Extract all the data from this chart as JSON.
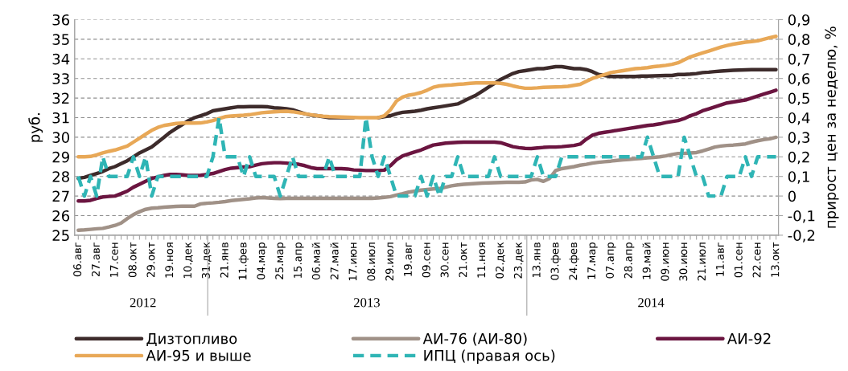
{
  "chart_data": {
    "type": "line",
    "categories": [
      "06.авг",
      null,
      null,
      "27.авг",
      null,
      null,
      "17.сен",
      null,
      null,
      "08.окт",
      null,
      null,
      "29.окт",
      null,
      null,
      "19.ноя",
      null,
      null,
      "10.дек",
      null,
      null,
      "31.дек",
      null,
      null,
      "21.янв",
      null,
      null,
      "11.фев",
      null,
      null,
      "04.мар",
      null,
      null,
      "25.мар",
      null,
      null,
      "15.апр",
      null,
      null,
      "06.май",
      null,
      null,
      "27.май",
      null,
      null,
      "17.июн",
      null,
      null,
      "08.июл",
      null,
      null,
      "29.июл",
      null,
      null,
      "19.авг",
      null,
      null,
      "09.сен",
      null,
      null,
      "30.сен",
      null,
      null,
      "21.окт",
      null,
      null,
      "11.ноя",
      null,
      null,
      "02.дек",
      null,
      null,
      "23.дек",
      null,
      null,
      "13.янв",
      null,
      null,
      "03.фев",
      null,
      null,
      "24.фев",
      null,
      null,
      "17.мар",
      null,
      null,
      "07.апр",
      null,
      null,
      "28.апр",
      null,
      null,
      "19.май",
      null,
      null,
      "09.июн",
      null,
      null,
      "30.июн",
      null,
      null,
      "21.июл",
      null,
      null,
      "11.авг",
      null,
      null,
      "01.сен",
      null,
      null,
      "22.сен",
      null,
      null,
      "13.окт"
    ],
    "x2lim": [
      "2012-08-06",
      "2014-10-13"
    ],
    "x2ticks": [
      {
        "value": "2013-01-01",
        "label": null
      },
      {
        "value": "2014-01-01",
        "label": null
      },
      {
        "value": "2012-10-19",
        "label": "2012"
      },
      {
        "value": "2013-07-02",
        "label": "2013"
      },
      {
        "value": "2014-05-23",
        "label": "2014"
      }
    ],
    "ylabel": "руб.",
    "y2label": "прирост цен за неделю, %",
    "ylim": [
      25,
      36
    ],
    "yticks": [
      25,
      26,
      27,
      28,
      29,
      30,
      31,
      32,
      33,
      34,
      35,
      36
    ],
    "y2lim": [
      -0.2,
      0.9
    ],
    "y2ticks": [
      {
        "value": -0.2,
        "label": "-0,2"
      },
      {
        "value": -0.1,
        "label": "-0,1"
      },
      0,
      {
        "value": 0.1,
        "label": "0,1"
      },
      {
        "value": 0.2,
        "label": "0,2"
      },
      {
        "value": 0.3,
        "label": "0,3"
      },
      {
        "value": 0.4,
        "label": "0,4"
      },
      {
        "value": 0.5,
        "label": "0,5"
      },
      {
        "value": 0.6,
        "label": "0,6"
      },
      {
        "value": 0.7,
        "label": "0,7"
      },
      {
        "value": 0.8,
        "label": "0,8"
      },
      {
        "value": 0.9,
        "label": "0,9"
      }
    ],
    "grid": "y",
    "legend": "bottom",
    "series": [
      {
        "name": "Дизтопливо",
        "color": "#3d2b2b",
        "values": [
          27.9,
          27.95,
          28.05,
          28.15,
          28.25,
          28.4,
          28.5,
          28.65,
          28.8,
          29.0,
          29.2,
          29.35,
          29.5,
          29.75,
          30.0,
          30.25,
          30.45,
          30.65,
          30.85,
          31.0,
          31.1,
          31.2,
          31.35,
          31.4,
          31.45,
          31.5,
          31.55,
          31.55,
          31.56,
          31.56,
          31.56,
          31.55,
          31.5,
          31.48,
          31.45,
          31.4,
          31.3,
          31.2,
          31.13,
          31.1,
          31.05,
          31.0,
          31.0,
          31.0,
          31.0,
          31.0,
          null,
          null,
          null,
          31.0,
          31.05,
          31.1,
          31.2,
          31.27,
          31.3,
          31.33,
          31.38,
          31.45,
          31.5,
          31.55,
          31.6,
          31.65,
          31.7,
          31.85,
          32.0,
          32.15,
          32.35,
          32.55,
          32.75,
          32.95,
          33.1,
          33.25,
          33.35,
          33.4,
          33.45,
          33.5,
          33.5,
          33.55,
          33.6,
          33.6,
          33.55,
          33.5,
          33.5,
          33.45,
          33.35,
          33.2,
          33.15,
          33.1,
          33.1,
          33.1,
          33.1,
          33.1,
          33.12,
          33.12,
          33.13,
          33.14,
          33.15,
          33.15,
          33.2,
          33.2,
          33.22,
          33.25,
          33.3,
          33.32,
          33.35,
          33.38,
          33.4,
          33.42,
          33.43,
          33.44,
          33.45,
          33.45,
          33.45,
          33.45,
          33.45
        ]
      },
      {
        "name": "АИ-76 (АИ-80)",
        "color": "#a09187",
        "values": [
          25.25,
          25.27,
          25.3,
          25.33,
          25.35,
          25.42,
          25.5,
          25.62,
          25.85,
          26.05,
          26.2,
          26.32,
          26.38,
          26.4,
          26.43,
          26.45,
          26.47,
          26.48,
          26.48,
          26.48,
          26.6,
          26.63,
          26.65,
          26.68,
          26.72,
          26.77,
          26.8,
          26.83,
          26.86,
          26.9,
          26.92,
          26.9,
          26.88,
          26.87,
          26.88,
          26.88,
          26.88,
          26.88,
          26.88,
          26.88,
          26.88,
          26.88,
          26.88,
          26.88,
          26.88,
          26.88,
          26.88,
          26.88,
          26.88,
          26.9,
          26.93,
          26.97,
          27.05,
          27.12,
          27.2,
          27.25,
          27.3,
          27.33,
          27.36,
          27.38,
          27.45,
          27.52,
          27.57,
          27.6,
          27.62,
          27.64,
          27.66,
          27.67,
          27.68,
          27.69,
          27.7,
          27.7,
          27.7,
          27.72,
          27.82,
          27.85,
          27.75,
          27.9,
          28.3,
          28.4,
          28.45,
          28.5,
          28.57,
          28.62,
          28.68,
          28.72,
          28.75,
          28.78,
          28.82,
          28.85,
          28.87,
          28.9,
          28.92,
          28.95,
          28.97,
          29.0,
          29.05,
          29.12,
          29.17,
          29.18,
          29.2,
          29.22,
          29.3,
          29.4,
          29.5,
          29.55,
          29.58,
          29.6,
          29.63,
          29.66,
          29.75,
          29.82,
          29.88,
          29.92,
          30.0
        ]
      },
      {
        "name": "АИ-92",
        "color": "#6b1540",
        "values": [
          26.75,
          26.75,
          26.78,
          26.88,
          26.95,
          26.98,
          27.0,
          27.12,
          27.25,
          27.45,
          27.6,
          27.75,
          27.9,
          27.97,
          28.05,
          28.1,
          28.1,
          28.08,
          28.05,
          28.05,
          28.06,
          28.1,
          28.15,
          28.25,
          28.35,
          28.42,
          28.45,
          28.48,
          28.5,
          28.58,
          28.65,
          28.68,
          28.7,
          28.7,
          28.68,
          28.65,
          28.62,
          28.55,
          28.45,
          28.4,
          28.4,
          28.4,
          28.4,
          28.4,
          28.38,
          28.33,
          28.32,
          28.3,
          28.3,
          28.3,
          28.32,
          28.55,
          28.85,
          29.05,
          29.15,
          29.25,
          29.35,
          29.48,
          29.6,
          29.65,
          29.7,
          29.72,
          29.74,
          29.75,
          29.75,
          29.75,
          29.75,
          29.75,
          29.75,
          29.72,
          29.62,
          29.52,
          29.47,
          29.43,
          29.42,
          29.45,
          29.48,
          29.5,
          29.5,
          29.52,
          29.55,
          29.58,
          29.65,
          29.9,
          30.1,
          30.2,
          30.25,
          30.3,
          30.35,
          30.4,
          30.45,
          30.5,
          30.55,
          30.6,
          30.63,
          30.68,
          30.75,
          30.8,
          30.85,
          30.95,
          31.1,
          31.2,
          31.35,
          31.45,
          31.55,
          31.65,
          31.75,
          31.8,
          31.85,
          31.9,
          32.0,
          32.1,
          32.2,
          32.3,
          32.4
        ]
      },
      {
        "name": "АИ-95 и выше",
        "color": "#e8a857",
        "values": [
          29.0,
          29.0,
          29.02,
          29.1,
          29.2,
          29.28,
          29.35,
          29.45,
          29.55,
          29.75,
          29.95,
          30.15,
          30.35,
          30.5,
          30.6,
          30.65,
          30.7,
          30.72,
          30.72,
          30.72,
          30.73,
          30.78,
          30.85,
          30.95,
          31.05,
          31.08,
          31.1,
          31.12,
          31.15,
          31.2,
          31.25,
          31.28,
          31.3,
          31.32,
          31.33,
          31.3,
          31.25,
          31.2,
          31.15,
          31.1,
          31.07,
          31.05,
          31.04,
          31.03,
          31.02,
          31.01,
          31.0,
          31.0,
          31.0,
          31.0,
          31.1,
          31.4,
          31.85,
          32.05,
          32.15,
          32.2,
          32.28,
          32.4,
          32.55,
          32.62,
          32.65,
          32.67,
          32.7,
          32.72,
          32.75,
          32.77,
          32.77,
          32.77,
          32.77,
          32.75,
          32.7,
          32.62,
          32.55,
          32.5,
          32.5,
          32.52,
          32.55,
          32.56,
          32.57,
          32.58,
          32.6,
          32.65,
          32.7,
          32.85,
          33.0,
          33.1,
          33.2,
          33.3,
          33.35,
          33.4,
          33.45,
          33.5,
          33.52,
          33.55,
          33.6,
          33.63,
          33.67,
          33.72,
          33.8,
          33.95,
          34.1,
          34.2,
          34.3,
          34.4,
          34.5,
          34.6,
          34.68,
          34.75,
          34.8,
          34.85,
          34.88,
          34.92,
          35.0,
          35.08,
          35.15
        ]
      },
      {
        "name": "ИПЦ (правая ось)",
        "color": "#2fb5b5",
        "axis": "y2",
        "line_style": "dashed",
        "values": [
          0.1,
          0.0,
          0.1,
          0.0,
          0.2,
          0.1,
          0.1,
          0.1,
          0.1,
          0.2,
          0.1,
          0.2,
          0.0,
          0.1,
          0.1,
          0.1,
          0.1,
          0.1,
          0.1,
          0.1,
          0.1,
          0.1,
          0.2,
          0.4,
          0.2,
          0.2,
          0.2,
          0.1,
          0.2,
          0.1,
          0.1,
          0.1,
          0.1,
          0.0,
          0.1,
          0.2,
          0.1,
          0.1,
          0.1,
          0.1,
          0.1,
          0.2,
          0.1,
          0.1,
          0.1,
          0.1,
          0.1,
          0.4,
          0.2,
          0.1,
          0.2,
          0.1,
          0.0,
          0.0,
          0.0,
          0.0,
          0.1,
          0.0,
          0.1,
          0.0,
          0.1,
          0.1,
          0.2,
          0.1,
          0.1,
          0.1,
          0.1,
          0.1,
          0.2,
          0.1,
          0.1,
          0.1,
          0.1,
          0.1,
          0.1,
          0.2,
          0.1,
          0.1,
          0.1,
          0.2,
          0.2,
          0.2,
          0.2,
          0.2,
          0.2,
          0.2,
          0.2,
          0.2,
          0.2,
          0.2,
          0.2,
          0.2,
          0.2,
          0.3,
          0.2,
          0.1,
          0.1,
          0.1,
          0.1,
          0.3,
          0.2,
          0.1,
          0.1,
          0.0,
          0.0,
          0.0,
          0.1,
          0.1,
          0.1,
          0.2,
          0.1,
          0.2,
          0.2,
          0.2,
          0.2
        ]
      }
    ]
  }
}
